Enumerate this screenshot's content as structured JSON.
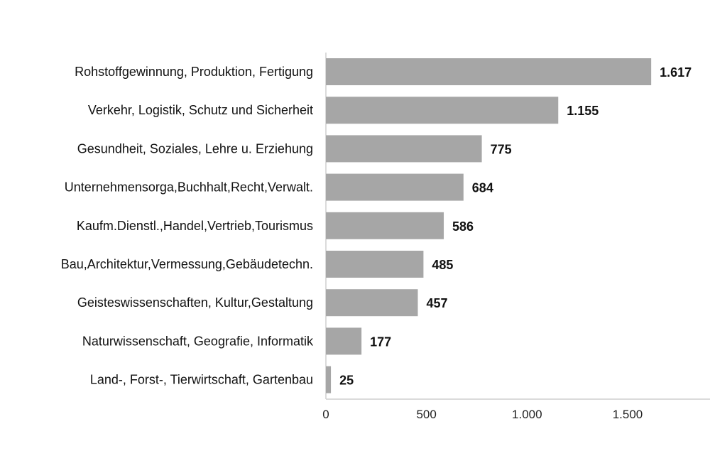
{
  "chart_data": {
    "type": "bar",
    "orientation": "horizontal",
    "categories": [
      "Rohstoffgewinnung, Produktion, Fertigung",
      "Verkehr, Logistik, Schutz und Sicherheit",
      "Gesundheit, Soziales, Lehre u. Erziehung",
      "Unternehmensorga,Buchhalt,Recht,Verwalt.",
      "Kaufm.Dienstl.,Handel,Vertrieb,Tourismus",
      "Bau,Architektur,Vermessung,Gebäudetechn.",
      "Geisteswissenschaften, Kultur,Gestaltung",
      "Naturwissenschaft, Geografie, Informatik",
      "Land-, Forst-, Tierwirtschaft, Gartenbau"
    ],
    "values": [
      1617,
      1155,
      775,
      684,
      586,
      485,
      457,
      177,
      25
    ],
    "value_labels": [
      "1.617",
      "1.155",
      "775",
      "684",
      "586",
      "485",
      "457",
      "177",
      "25"
    ],
    "x_ticks": [
      0,
      500,
      1000,
      1500
    ],
    "x_tick_labels": [
      "0",
      "500",
      "1.000",
      "1.500"
    ],
    "xlim": [
      0,
      1900
    ],
    "grid": false,
    "bar_color": "#a6a6a6"
  }
}
